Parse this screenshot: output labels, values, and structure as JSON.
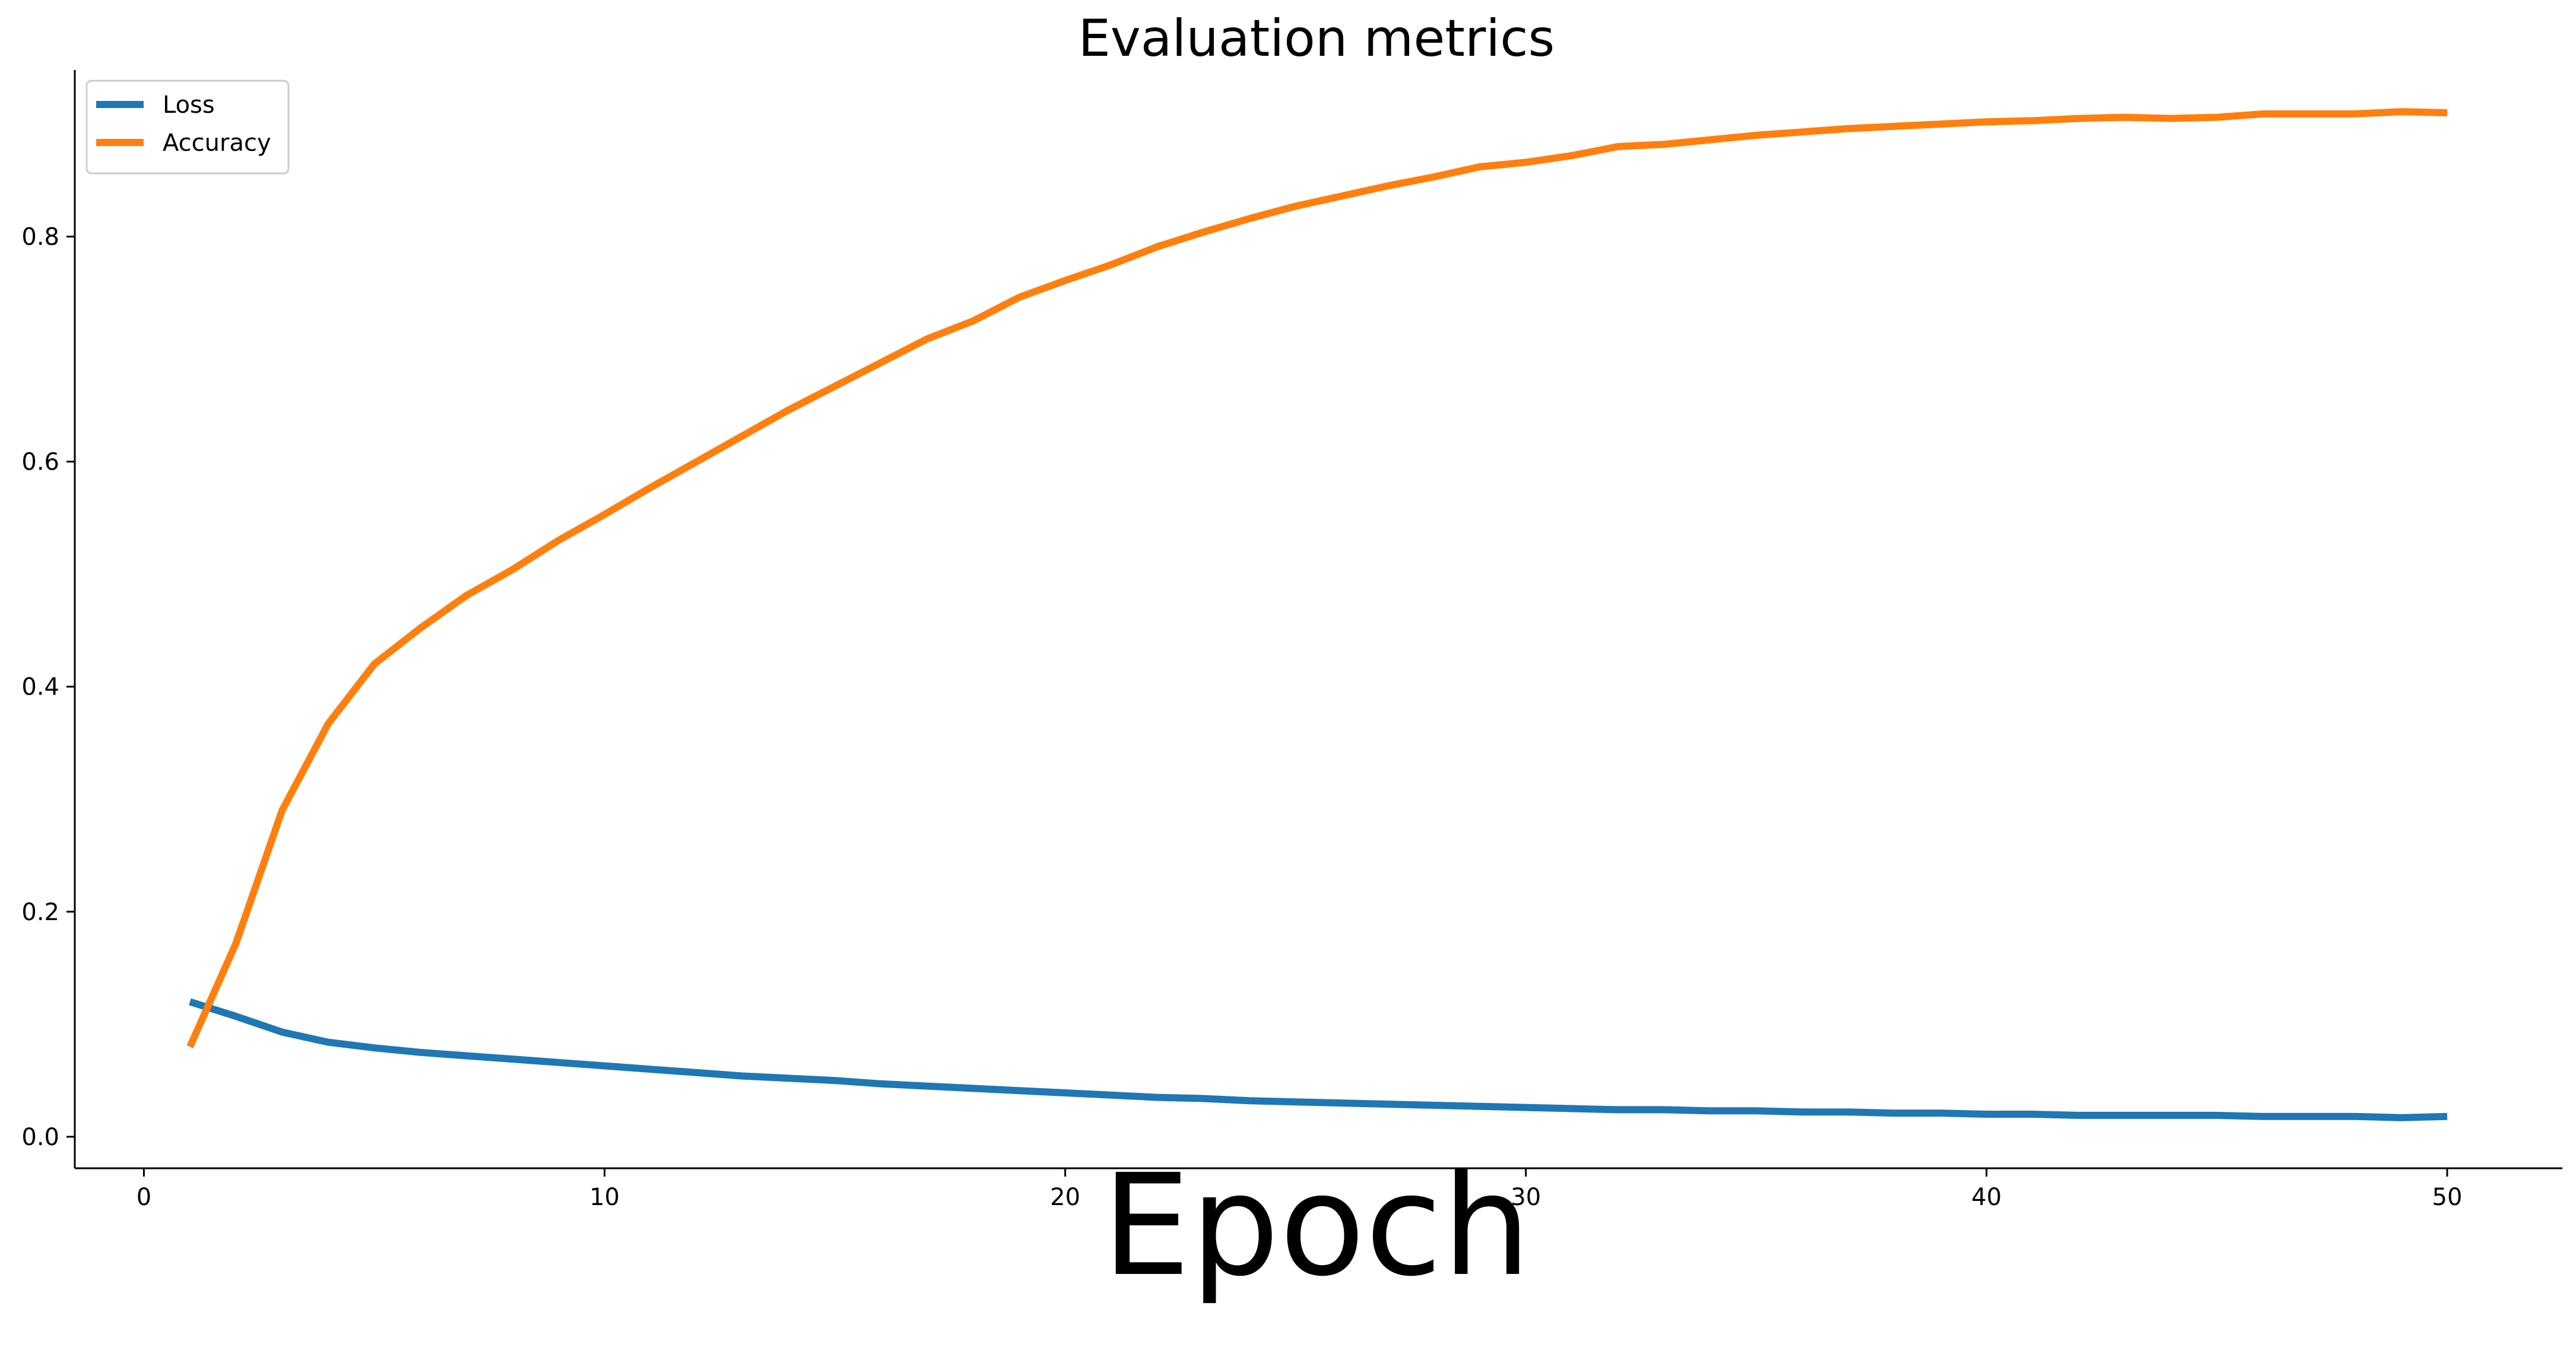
{
  "chart_data": {
    "type": "line",
    "title": "Evaluation metrics",
    "xlabel": "Epoch",
    "ylabel": "",
    "xlim": [
      -1.5,
      52.5
    ],
    "ylim": [
      -0.028,
      0.948
    ],
    "xticks": [
      0,
      10,
      20,
      30,
      40,
      50
    ],
    "yticks": [
      0.0,
      0.2,
      0.4,
      0.6,
      0.8
    ],
    "xtick_labels": [
      "0",
      "10",
      "20",
      "30",
      "40",
      "50"
    ],
    "ytick_labels": [
      "0.0",
      "0.2",
      "0.4",
      "0.6",
      "0.8"
    ],
    "grid": false,
    "legend_position": "top-left",
    "x": [
      1,
      2,
      3,
      4,
      5,
      6,
      7,
      8,
      9,
      10,
      11,
      12,
      13,
      14,
      15,
      16,
      17,
      18,
      19,
      20,
      21,
      22,
      23,
      24,
      25,
      26,
      27,
      28,
      29,
      30,
      31,
      32,
      33,
      34,
      35,
      36,
      37,
      38,
      39,
      40,
      41,
      42,
      43,
      44,
      45,
      46,
      47,
      48,
      49,
      50
    ],
    "series": [
      {
        "name": "Loss",
        "color": "#1f77b4",
        "values": [
          0.12,
          0.107,
          0.093,
          0.084,
          0.079,
          0.075,
          0.072,
          0.069,
          0.066,
          0.063,
          0.06,
          0.057,
          0.054,
          0.052,
          0.05,
          0.047,
          0.045,
          0.043,
          0.041,
          0.039,
          0.037,
          0.035,
          0.034,
          0.032,
          0.031,
          0.03,
          0.029,
          0.028,
          0.027,
          0.026,
          0.025,
          0.024,
          0.024,
          0.023,
          0.023,
          0.022,
          0.022,
          0.021,
          0.021,
          0.02,
          0.02,
          0.019,
          0.019,
          0.019,
          0.019,
          0.018,
          0.018,
          0.018,
          0.017,
          0.018
        ]
      },
      {
        "name": "Accuracy",
        "color": "#ff7f0e",
        "values": [
          0.08,
          0.172,
          0.29,
          0.367,
          0.42,
          0.452,
          0.481,
          0.504,
          0.53,
          0.553,
          0.577,
          0.6,
          0.623,
          0.646,
          0.667,
          0.688,
          0.709,
          0.725,
          0.746,
          0.761,
          0.775,
          0.791,
          0.804,
          0.816,
          0.827,
          0.836,
          0.845,
          0.853,
          0.862,
          0.866,
          0.872,
          0.88,
          0.882,
          0.886,
          0.89,
          0.893,
          0.896,
          0.898,
          0.9,
          0.902,
          0.903,
          0.905,
          0.906,
          0.905,
          0.906,
          0.909,
          0.909,
          0.909,
          0.911,
          0.91
        ]
      }
    ]
  }
}
